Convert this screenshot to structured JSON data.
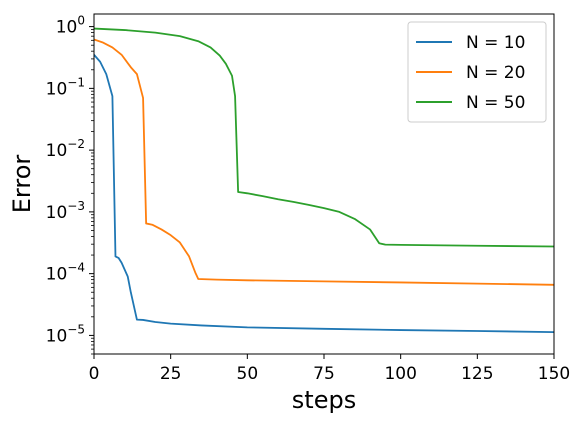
{
  "chart_data": {
    "type": "line",
    "xlabel": "steps",
    "ylabel": "Error",
    "xlim": [
      0,
      150
    ],
    "ylim": [
      5e-06,
      1.6
    ],
    "yscale": "log",
    "grid": false,
    "legend": "top-right",
    "x_ticks": [
      0,
      25,
      50,
      75,
      100,
      125,
      150
    ],
    "y_ticks": [
      {
        "exp": 0,
        "value": 1
      },
      {
        "exp": -1,
        "value": 0.1
      },
      {
        "exp": -2,
        "value": 0.01
      },
      {
        "exp": -3,
        "value": 0.001
      },
      {
        "exp": -4,
        "value": 0.0001
      },
      {
        "exp": -5,
        "value": 1e-05
      }
    ],
    "y_tick_base": "10",
    "series": [
      {
        "name": "N = 10",
        "color": "#1f77b4",
        "points": [
          [
            0,
            0.35
          ],
          [
            2,
            0.27
          ],
          [
            4,
            0.17
          ],
          [
            6,
            0.075
          ],
          [
            7,
            0.00019
          ],
          [
            8,
            0.00018
          ],
          [
            9,
            0.00015
          ],
          [
            11,
            9e-05
          ],
          [
            12,
            5e-05
          ],
          [
            14,
            1.8e-05
          ],
          [
            16,
            1.78e-05
          ],
          [
            20,
            1.65e-05
          ],
          [
            25,
            1.55e-05
          ],
          [
            35,
            1.45e-05
          ],
          [
            50,
            1.35e-05
          ],
          [
            75,
            1.28e-05
          ],
          [
            100,
            1.22e-05
          ],
          [
            125,
            1.18e-05
          ],
          [
            150,
            1.13e-05
          ]
        ]
      },
      {
        "name": "N = 20",
        "color": "#ff7f0e",
        "points": [
          [
            0,
            0.62
          ],
          [
            3,
            0.55
          ],
          [
            6,
            0.46
          ],
          [
            9,
            0.35
          ],
          [
            12,
            0.22
          ],
          [
            14,
            0.17
          ],
          [
            16,
            0.07
          ],
          [
            17,
            0.00065
          ],
          [
            19,
            0.00062
          ],
          [
            22,
            0.00052
          ],
          [
            25,
            0.00042
          ],
          [
            28,
            0.00032
          ],
          [
            31,
            0.00019
          ],
          [
            33,
            0.000105
          ],
          [
            34,
            8.2e-05
          ],
          [
            40,
            8e-05
          ],
          [
            50,
            7.8e-05
          ],
          [
            75,
            7.5e-05
          ],
          [
            100,
            7.2e-05
          ],
          [
            125,
            6.9e-05
          ],
          [
            150,
            6.6e-05
          ]
        ]
      },
      {
        "name": "N = 50",
        "color": "#2ca02c",
        "points": [
          [
            0,
            0.93
          ],
          [
            10,
            0.88
          ],
          [
            20,
            0.8
          ],
          [
            28,
            0.7
          ],
          [
            34,
            0.58
          ],
          [
            38,
            0.46
          ],
          [
            41,
            0.34
          ],
          [
            43,
            0.25
          ],
          [
            45,
            0.16
          ],
          [
            46,
            0.075
          ],
          [
            47,
            0.0021
          ],
          [
            50,
            0.002
          ],
          [
            55,
            0.0018
          ],
          [
            60,
            0.0016
          ],
          [
            65,
            0.00145
          ],
          [
            70,
            0.0013
          ],
          [
            75,
            0.00115
          ],
          [
            80,
            0.001
          ],
          [
            85,
            0.00077
          ],
          [
            90,
            0.00052
          ],
          [
            93,
            0.00031
          ],
          [
            95,
            0.000295
          ],
          [
            100,
            0.000292
          ],
          [
            125,
            0.000283
          ],
          [
            150,
            0.000275
          ]
        ]
      }
    ]
  }
}
